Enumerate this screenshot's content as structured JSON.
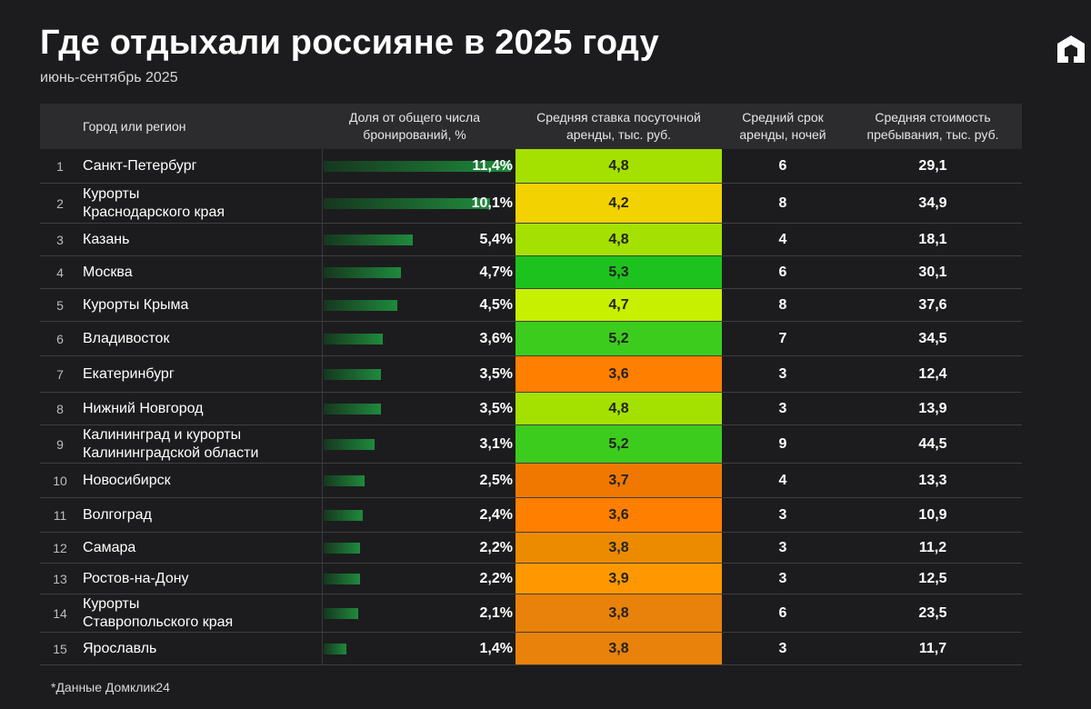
{
  "header": {
    "title": "Где отдыхали россияне в 2025 году",
    "subtitle": "июнь-сентябрь 2025",
    "logo": "domclick-house-icon"
  },
  "footnote": "*Данные Домклик24",
  "chart_data": {
    "type": "table",
    "columns": {
      "region": "Город или регион",
      "share": "Доля от общего числа\nбронирований, %",
      "rate": "Средняя ставка посуточной\nаренды, тыс. руб.",
      "nights": "Средний срок\nаренды, ночей",
      "cost": "Средняя стоимость\nпребывания, тыс. руб."
    },
    "share_max": 11.4,
    "rows": [
      {
        "rank": "1",
        "name": "Санкт-Петербург",
        "share": 11.4,
        "share_label": "11,4%",
        "rate": "4,8",
        "rate_color": "#a4e000",
        "nights": "6",
        "cost": "29,1"
      },
      {
        "rank": "2",
        "name": "Курорты\nКраснодарского края",
        "share": 10.1,
        "share_label": "10,1%",
        "rate": "4,2",
        "rate_color": "#f2d200",
        "nights": "8",
        "cost": "34,9"
      },
      {
        "rank": "3",
        "name": "Казань",
        "share": 5.4,
        "share_label": "5,4%",
        "rate": "4,8",
        "rate_color": "#a4e000",
        "nights": "4",
        "cost": "18,1"
      },
      {
        "rank": "4",
        "name": "Москва",
        "share": 4.7,
        "share_label": "4,7%",
        "rate": "5,3",
        "rate_color": "#1ec21e",
        "nights": "6",
        "cost": "30,1"
      },
      {
        "rank": "5",
        "name": "Курорты Крыма",
        "share": 4.5,
        "share_label": "4,5%",
        "rate": "4,7",
        "rate_color": "#c6f000",
        "nights": "8",
        "cost": "37,6"
      },
      {
        "rank": "6",
        "name": "Владивосток",
        "share": 3.6,
        "share_label": "3,6%",
        "rate": "5,2",
        "rate_color": "#3ccc1e",
        "nights": "7",
        "cost": "34,5"
      },
      {
        "rank": "7",
        "name": "Екатеринбург",
        "share": 3.5,
        "share_label": "3,5%",
        "rate": "3,6",
        "rate_color": "#ff7f00",
        "nights": "3",
        "cost": "12,4"
      },
      {
        "rank": "8",
        "name": "Нижний Новгород",
        "share": 3.5,
        "share_label": "3,5%",
        "rate": "4,8",
        "rate_color": "#a4e000",
        "nights": "3",
        "cost": "13,9"
      },
      {
        "rank": "9",
        "name": "Калининград и курорты\nКалининградской области",
        "share": 3.1,
        "share_label": "3,1%",
        "rate": "5,2",
        "rate_color": "#3ccc1e",
        "nights": "9",
        "cost": "44,5"
      },
      {
        "rank": "10",
        "name": "Новосибирск",
        "share": 2.5,
        "share_label": "2,5%",
        "rate": "3,7",
        "rate_color": "#f07800",
        "nights": "4",
        "cost": "13,3"
      },
      {
        "rank": "11",
        "name": "Волгоград",
        "share": 2.4,
        "share_label": "2,4%",
        "rate": "3,6",
        "rate_color": "#ff7f00",
        "nights": "3",
        "cost": "10,9"
      },
      {
        "rank": "12",
        "name": "Самара",
        "share": 2.2,
        "share_label": "2,2%",
        "rate": "3,8",
        "rate_color": "#ec8a00",
        "nights": "3",
        "cost": "11,2"
      },
      {
        "rank": "13",
        "name": "Ростов-на-Дону",
        "share": 2.2,
        "share_label": "2,2%",
        "rate": "3,9",
        "rate_color": "#ff9800",
        "nights": "3",
        "cost": "12,5"
      },
      {
        "rank": "14",
        "name": "Курорты\nСтавропольского края",
        "share": 2.1,
        "share_label": "2,1%",
        "rate": "3,8",
        "rate_color": "#e8820a",
        "nights": "6",
        "cost": "23,5"
      },
      {
        "rank": "15",
        "name": "Ярославль",
        "share": 1.4,
        "share_label": "1,4%",
        "rate": "3,8",
        "rate_color": "#e8820a",
        "nights": "3",
        "cost": "11,7"
      }
    ]
  }
}
